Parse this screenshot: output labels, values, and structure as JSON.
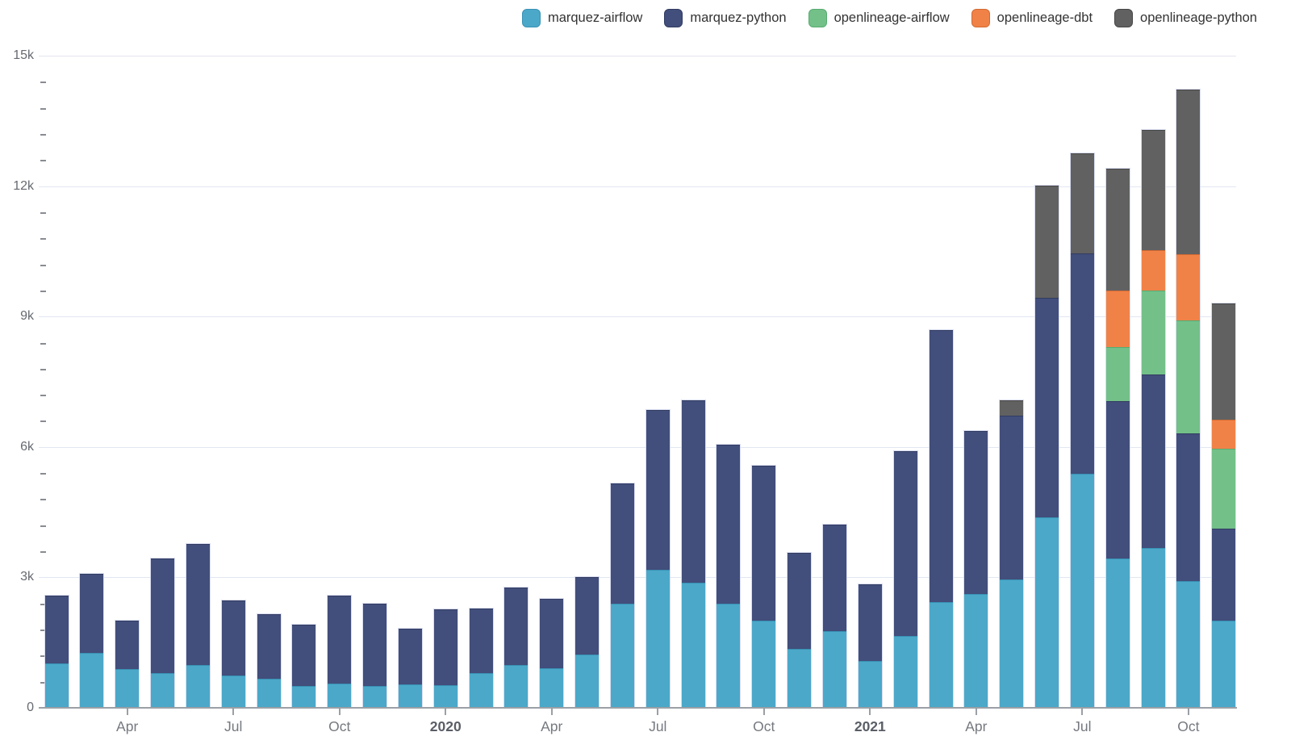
{
  "page": {
    "background": "#ffffff"
  },
  "legend": {
    "items": [
      {
        "label": "marquez-airflow",
        "color": "#4ba8c9",
        "border": "#3892b5"
      },
      {
        "label": "marquez-python",
        "color": "#424e7b",
        "border": "#323c62"
      },
      {
        "label": "openlineage-airflow",
        "color": "#73c089",
        "border": "#58ac71"
      },
      {
        "label": "openlineage-dbt",
        "color": "#f08248",
        "border": "#d46a32"
      },
      {
        "label": "openlineage-python",
        "color": "#616161",
        "border": "#474747"
      }
    ]
  },
  "chart_data": {
    "type": "bar",
    "stacked": true,
    "title": "",
    "xlabel": "",
    "ylabel": "",
    "categories": [
      "Feb 2019",
      "Mar 2019",
      "Apr 2019",
      "May 2019",
      "Jun 2019",
      "Jul 2019",
      "Aug 2019",
      "Sep 2019",
      "Oct 2019",
      "Nov 2019",
      "Dec 2019",
      "Jan 2020",
      "Feb 2020",
      "Mar 2020",
      "Apr 2020",
      "May 2020",
      "Jun 2020",
      "Jul 2020",
      "Aug 2020",
      "Sep 2020",
      "Oct 2020",
      "Nov 2020",
      "Dec 2020",
      "Jan 2021",
      "Feb 2021",
      "Mar 2021",
      "Apr 2021",
      "May 2021",
      "Jun 2021",
      "Jul 2021",
      "Aug 2021",
      "Sep 2021",
      "Oct 2021",
      "Nov 2021"
    ],
    "series": [
      {
        "name": "marquez-airflow",
        "color": "#4ba8c9",
        "border": "#3892b5",
        "values": [
          1020,
          1270,
          890,
          800,
          990,
          740,
          660,
          510,
          560,
          500,
          530,
          520,
          790,
          980,
          910,
          1220,
          2400,
          3180,
          2870,
          2400,
          2010,
          1360,
          1770,
          1080,
          1660,
          2440,
          2610,
          2960,
          4390,
          5390,
          3440,
          3670,
          2920,
          2000
        ]
      },
      {
        "name": "marquez-python",
        "color": "#424e7b",
        "border": "#323c62",
        "values": [
          1560,
          1810,
          1120,
          2640,
          2770,
          1730,
          1500,
          1410,
          2030,
          1900,
          1290,
          1740,
          1490,
          1790,
          1600,
          1780,
          2770,
          3670,
          4200,
          3650,
          3560,
          2200,
          2450,
          1760,
          4250,
          6250,
          3760,
          3770,
          5050,
          5070,
          3620,
          4000,
          3400,
          2130
        ]
      },
      {
        "name": "openlineage-airflow",
        "color": "#73c089",
        "border": "#58ac71",
        "values": [
          0,
          0,
          0,
          0,
          0,
          0,
          0,
          0,
          0,
          0,
          0,
          0,
          0,
          0,
          0,
          0,
          0,
          0,
          0,
          0,
          0,
          0,
          0,
          0,
          0,
          0,
          0,
          0,
          0,
          0,
          1240,
          1920,
          2600,
          1830
        ]
      },
      {
        "name": "openlineage-dbt",
        "color": "#f08248",
        "border": "#d46a32",
        "values": [
          0,
          0,
          0,
          0,
          0,
          0,
          0,
          0,
          0,
          0,
          0,
          0,
          0,
          0,
          0,
          0,
          0,
          0,
          0,
          0,
          0,
          0,
          0,
          0,
          0,
          0,
          0,
          0,
          0,
          0,
          1290,
          930,
          1510,
          670
        ]
      },
      {
        "name": "openlineage-python",
        "color": "#616161",
        "border": "#474747",
        "values": [
          0,
          0,
          0,
          0,
          0,
          0,
          0,
          0,
          0,
          0,
          0,
          0,
          0,
          0,
          0,
          0,
          0,
          0,
          0,
          0,
          0,
          0,
          0,
          0,
          0,
          0,
          0,
          340,
          2570,
          2300,
          2810,
          2780,
          3790,
          2670
        ]
      }
    ],
    "yaxis": {
      "min": 0,
      "max": 15000,
      "major_step": 3000,
      "minor_step": 600,
      "tick_labels": [
        "0",
        "3k",
        "6k",
        "9k",
        "12k",
        "15k"
      ]
    },
    "xaxis": {
      "ticks": [
        {
          "index": 2,
          "label": "Apr",
          "bold": false
        },
        {
          "index": 5,
          "label": "Jul",
          "bold": false
        },
        {
          "index": 8,
          "label": "Oct",
          "bold": false
        },
        {
          "index": 11,
          "label": "2020",
          "bold": true
        },
        {
          "index": 14,
          "label": "Apr",
          "bold": false
        },
        {
          "index": 17,
          "label": "Jul",
          "bold": false
        },
        {
          "index": 20,
          "label": "Oct",
          "bold": false
        },
        {
          "index": 23,
          "label": "2021",
          "bold": true
        },
        {
          "index": 26,
          "label": "Apr",
          "bold": false
        },
        {
          "index": 29,
          "label": "Jul",
          "bold": false
        },
        {
          "index": 32,
          "label": "Oct",
          "bold": false
        }
      ]
    },
    "grid": true,
    "legend_position": "top-right"
  },
  "colors": {
    "gridline": "#e2e6f1",
    "axis_line": "#9aa0a6",
    "y_label": "#666a70",
    "x_label": "#75797f",
    "x_label_bold": "#5a5e66",
    "legend_text": "#333333",
    "minor_tick": "#888c92"
  }
}
